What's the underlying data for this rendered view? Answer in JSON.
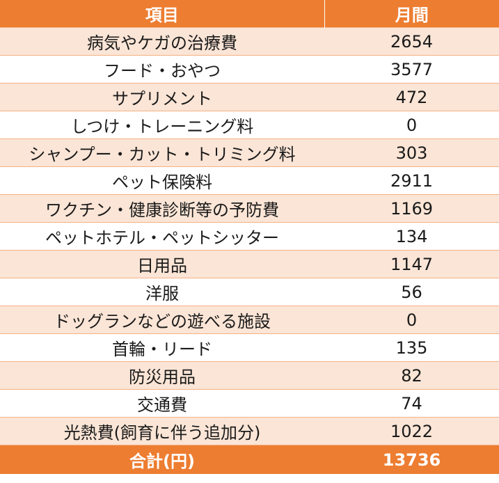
{
  "header": {
    "col_item": "項目",
    "col_monthly": "月間"
  },
  "rows": [
    {
      "item": "病気やケガの治療費",
      "monthly": "2654"
    },
    {
      "item": "フード・おやつ",
      "monthly": "3577"
    },
    {
      "item": "サプリメント",
      "monthly": "472"
    },
    {
      "item": "しつけ・トレーニング料",
      "monthly": "0"
    },
    {
      "item": "シャンプー・カット・トリミング料",
      "monthly": "303"
    },
    {
      "item": "ペット保険料",
      "monthly": "2911"
    },
    {
      "item": "ワクチン・健康診断等の予防費",
      "monthly": "1169"
    },
    {
      "item": "ペットホテル・ペットシッター",
      "monthly": "134"
    },
    {
      "item": "日用品",
      "monthly": "1147"
    },
    {
      "item": "洋服",
      "monthly": "56"
    },
    {
      "item": "ドッグランなどの遊べる施設",
      "monthly": "0"
    },
    {
      "item": "首輪・リード",
      "monthly": "135"
    },
    {
      "item": "防災用品",
      "monthly": "82"
    },
    {
      "item": "交通費",
      "monthly": "74"
    },
    {
      "item": "光熱費(飼育に伴う追加分)",
      "monthly": "1022"
    }
  ],
  "total": {
    "label": "合計(円)",
    "value": "13736"
  },
  "colors": {
    "header_bg": "#ed7d31",
    "band_bg": "#fbe5d6",
    "border": "#f4b183"
  }
}
